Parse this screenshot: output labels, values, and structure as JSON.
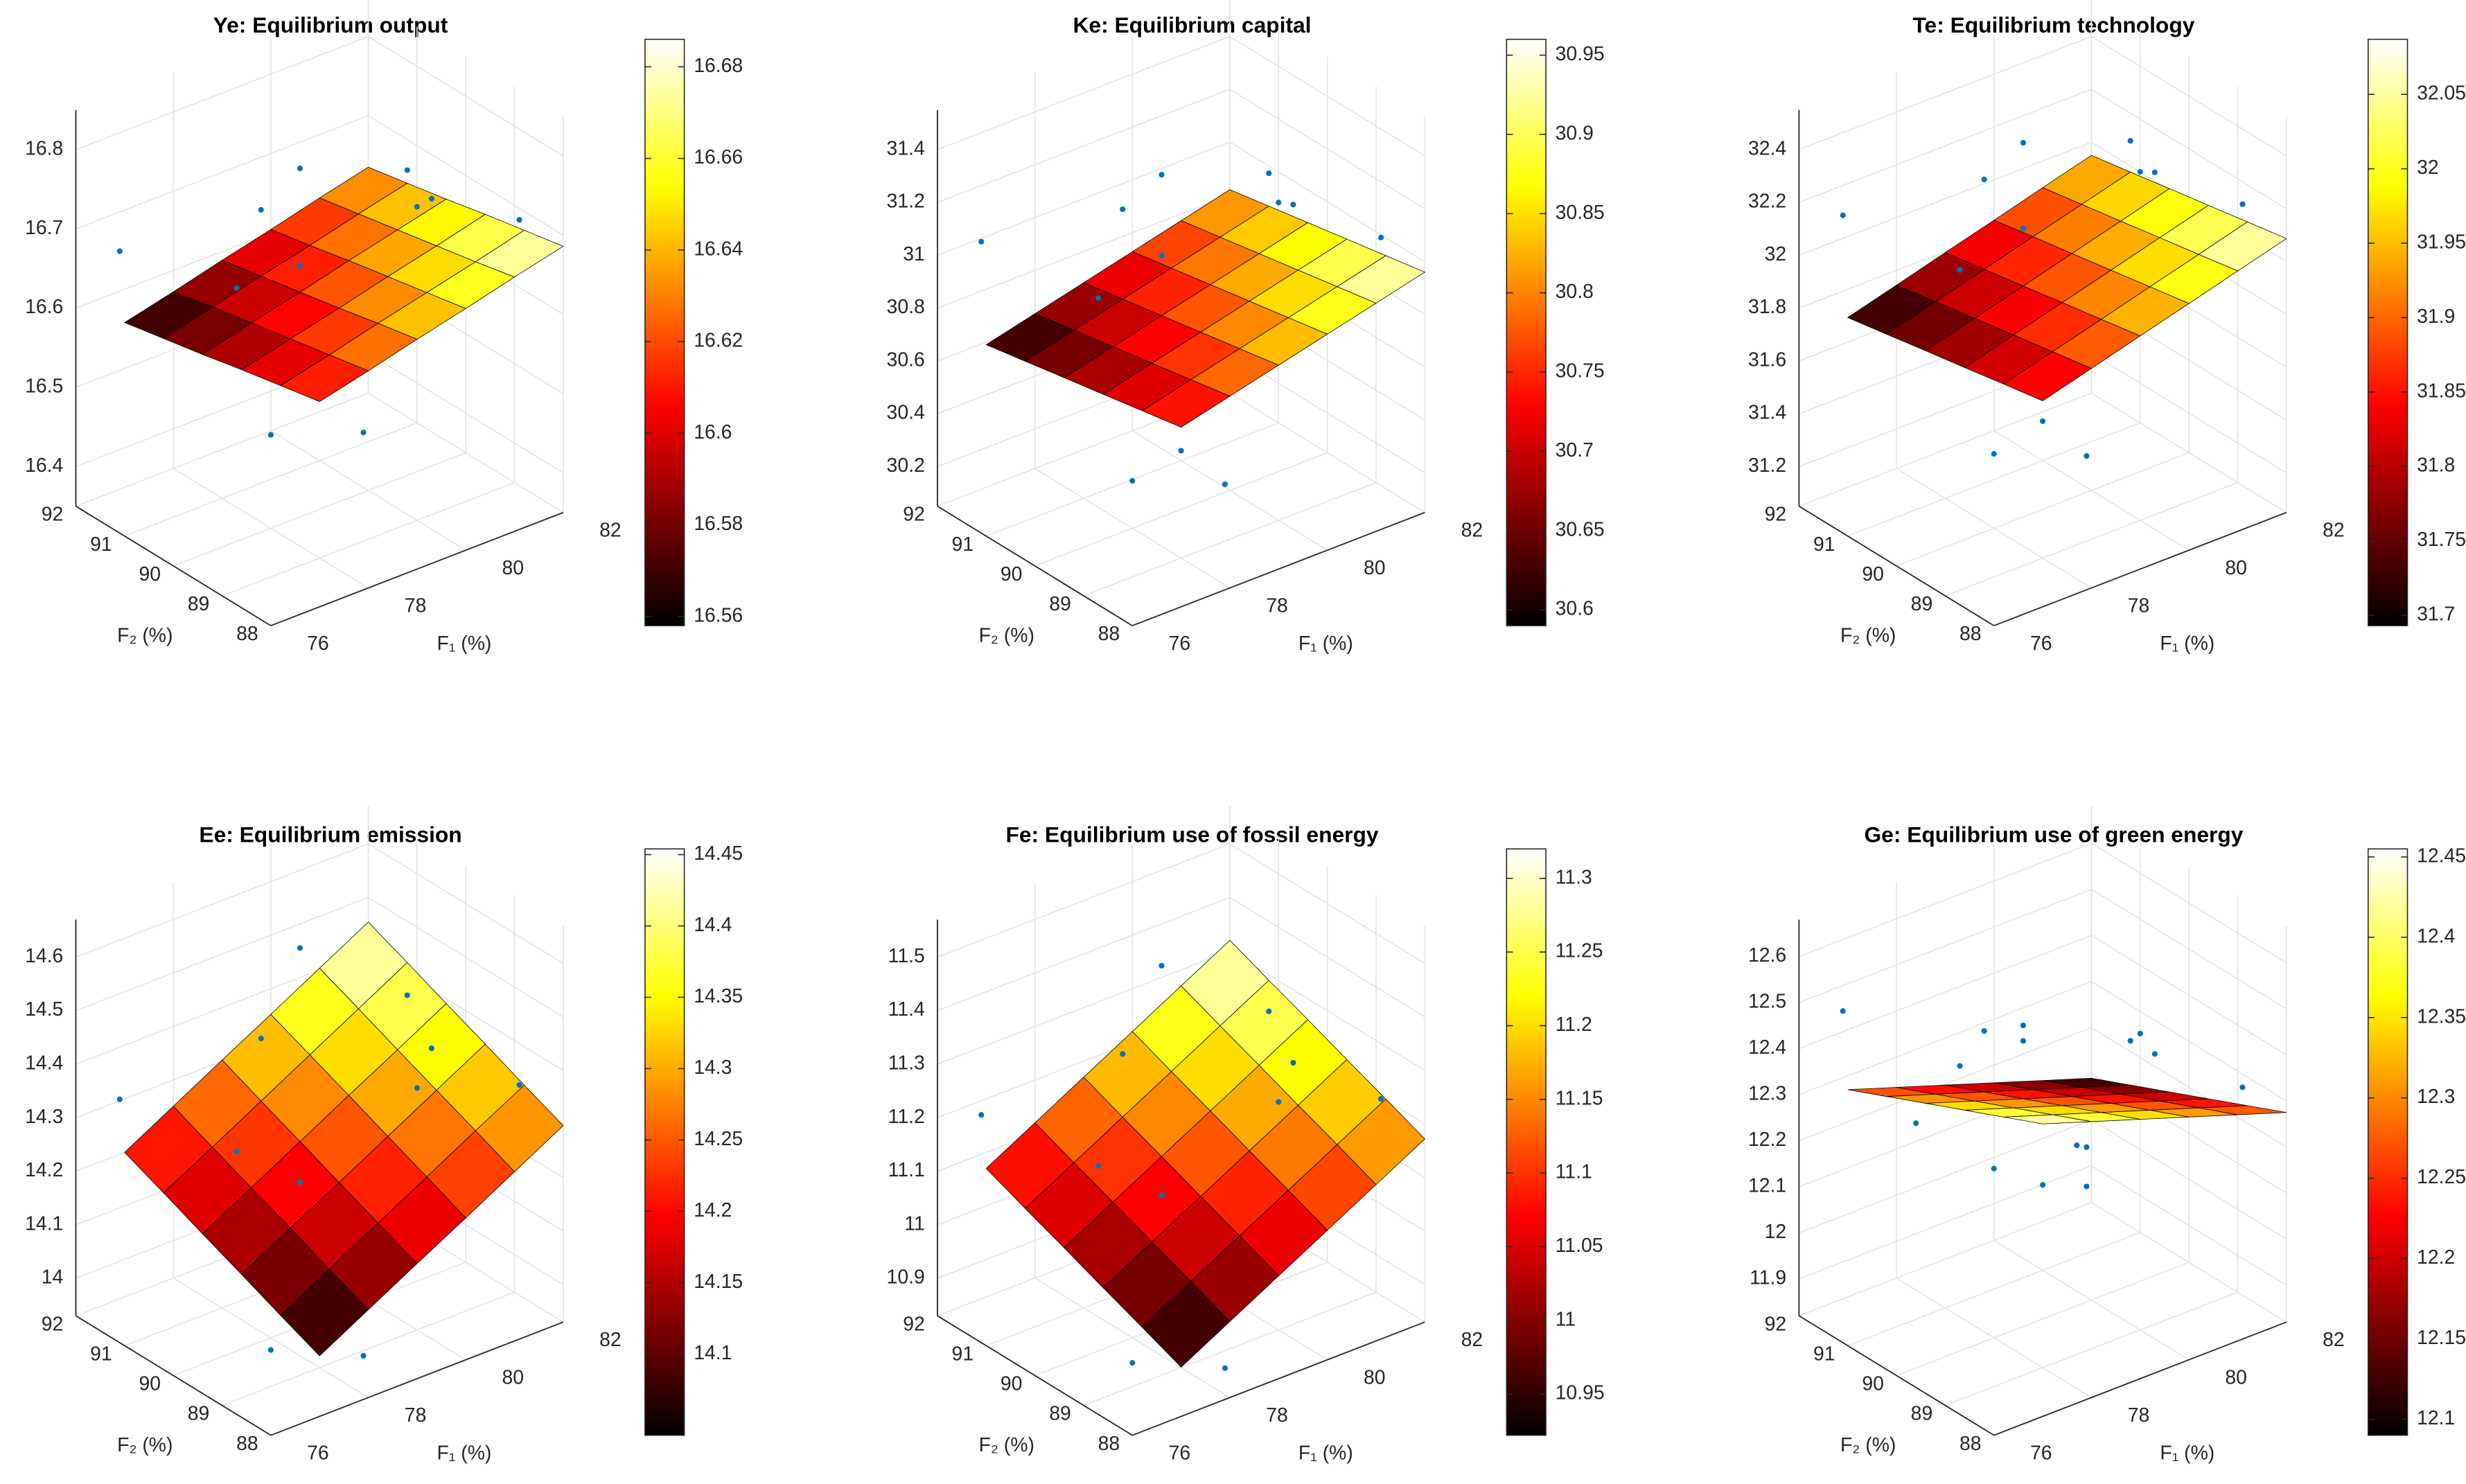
{
  "chart_data": [
    {
      "type": "surface3d",
      "title": "Ye: Equilibrium output",
      "xlabel": "F₁ (%)",
      "ylabel": "F₂ (%)",
      "xlim": [
        76,
        82
      ],
      "ylim": [
        88,
        92
      ],
      "zlim": [
        16.35,
        16.85
      ],
      "xticks": [
        76,
        78,
        80,
        82
      ],
      "yticks": [
        88,
        89,
        90,
        91,
        92
      ],
      "zticks": [
        16.4,
        16.5,
        16.6,
        16.7,
        16.8
      ],
      "grid": true,
      "colormap": "hot",
      "clim": [
        16.558,
        16.686
      ],
      "cticks": [
        16.56,
        16.58,
        16.6,
        16.62,
        16.64,
        16.66,
        16.68
      ],
      "surface": {
        "x": [
          77,
          78,
          79,
          80,
          81,
          82
        ],
        "y": [
          88,
          88.8,
          89.6,
          90.4,
          91.2,
          92
        ],
        "z": [
          [
            16.609,
            16.624,
            16.64,
            16.655,
            16.671,
            16.686
          ],
          [
            16.599,
            16.614,
            16.63,
            16.645,
            16.66,
            16.676
          ],
          [
            16.589,
            16.604,
            16.619,
            16.635,
            16.65,
            16.666
          ],
          [
            16.578,
            16.594,
            16.609,
            16.625,
            16.64,
            16.655
          ],
          [
            16.568,
            16.584,
            16.599,
            16.614,
            16.63,
            16.645
          ],
          [
            16.558,
            16.573,
            16.589,
            16.604,
            16.62,
            16.635
          ]
        ]
      },
      "points": {
        "color": "#0072bd",
        "x": [
          76.5,
          77.2,
          77.8,
          78.3,
          78.9,
          79.4,
          79.9,
          80.3,
          80.8,
          81.3,
          81.7,
          77.5,
          79.0,
          80.5,
          78.2,
          81.0
        ],
        "y": [
          91.6,
          89.2,
          90.5,
          88.4,
          91.1,
          89.7,
          88.9,
          90.8,
          89.5,
          91.4,
          88.6,
          88.9,
          90.0,
          91.9,
          91.8,
          90.2
        ],
        "z": [
          16.675,
          16.517,
          16.639,
          16.524,
          16.689,
          16.564,
          16.752,
          16.584,
          16.718,
          16.542,
          16.704,
          16.735,
          16.494,
          16.673,
          16.529,
          16.723
        ]
      }
    },
    {
      "type": "surface3d",
      "title": "Ke: Equilibrium capital",
      "xlabel": "F₁ (%)",
      "ylabel": "F₂ (%)",
      "xlim": [
        76,
        82
      ],
      "ylim": [
        88,
        92
      ],
      "zlim": [
        30.05,
        31.55
      ],
      "xticks": [
        76,
        78,
        80,
        82
      ],
      "yticks": [
        88,
        89,
        90,
        91,
        92
      ],
      "zticks": [
        30.2,
        30.4,
        30.6,
        30.8,
        31,
        31.2,
        31.4
      ],
      "grid": true,
      "colormap": "hot",
      "clim": [
        30.59,
        30.96
      ],
      "cticks": [
        30.6,
        30.65,
        30.7,
        30.75,
        30.8,
        30.85,
        30.9,
        30.95
      ],
      "surface": {
        "x": [
          77,
          78,
          79,
          80,
          81,
          82
        ],
        "y": [
          88,
          88.8,
          89.6,
          90.4,
          91.2,
          92
        ],
        "z": [
          [
            30.73,
            30.776,
            30.822,
            30.868,
            30.914,
            30.96
          ],
          [
            30.702,
            30.748,
            30.794,
            30.84,
            30.886,
            30.932
          ],
          [
            30.674,
            30.72,
            30.766,
            30.812,
            30.858,
            30.904
          ],
          [
            30.646,
            30.692,
            30.738,
            30.784,
            30.83,
            30.876
          ],
          [
            30.618,
            30.664,
            30.71,
            30.756,
            30.802,
            30.848
          ],
          [
            30.59,
            30.636,
            30.682,
            30.728,
            30.774,
            30.82
          ]
        ]
      },
      "points": {
        "color": "#0072bd",
        "x": [
          76.5,
          77.2,
          77.8,
          78.3,
          78.9,
          79.4,
          79.9,
          80.3,
          80.8,
          81.3,
          81.7,
          77.5,
          79.0,
          80.5,
          78.2,
          81.0
        ],
        "y": [
          91.6,
          89.2,
          90.5,
          88.4,
          91.1,
          89.7,
          88.9,
          90.8,
          89.5,
          91.4,
          88.6,
          88.9,
          90.0,
          91.9,
          91.8,
          90.2
        ],
        "z": [
          31.061,
          30.377,
          30.879,
          30.376,
          31.069,
          30.541,
          31.272,
          30.624,
          31.132,
          30.449,
          31.045,
          31.242,
          30.272,
          30.995,
          30.452,
          31.157
        ]
      }
    },
    {
      "type": "surface3d",
      "title": "Te: Equilibrium technology",
      "xlabel": "F₁ (%)",
      "ylabel": "F₂ (%)",
      "xlim": [
        76,
        82
      ],
      "ylim": [
        88,
        92
      ],
      "zlim": [
        31.05,
        32.55
      ],
      "xticks": [
        76,
        78,
        80,
        82
      ],
      "yticks": [
        88,
        89,
        90,
        91,
        92
      ],
      "zticks": [
        31.2,
        31.4,
        31.6,
        31.8,
        32,
        32.2,
        32.4
      ],
      "grid": true,
      "colormap": "hot",
      "clim": [
        31.693,
        32.087
      ],
      "cticks": [
        31.7,
        31.75,
        31.8,
        31.85,
        31.9,
        31.95,
        32,
        32.05
      ],
      "surface": {
        "x": [
          77,
          78,
          79,
          80,
          81,
          82
        ],
        "y": [
          88,
          88.8,
          89.6,
          90.4,
          91.2,
          92
        ],
        "z": [
          [
            31.83,
            31.881,
            31.933,
            31.984,
            32.036,
            32.087
          ],
          [
            31.803,
            31.854,
            31.905,
            31.957,
            32.008,
            32.06
          ],
          [
            31.775,
            31.827,
            31.878,
            31.929,
            31.981,
            32.032
          ],
          [
            31.748,
            31.799,
            31.85,
            31.902,
            31.953,
            32.005
          ],
          [
            31.72,
            31.772,
            31.823,
            31.875,
            31.926,
            31.977
          ],
          [
            31.693,
            31.744,
            31.796,
            31.847,
            31.899,
            31.95
          ]
        ]
      },
      "points": {
        "color": "#0072bd",
        "x": [
          76.5,
          77.2,
          77.8,
          78.3,
          78.9,
          79.4,
          79.9,
          80.3,
          80.8,
          81.3,
          81.7,
          77.5,
          79.0,
          80.5,
          78.2,
          81.0
        ],
        "y": [
          91.6,
          89.2,
          90.5,
          88.4,
          91.1,
          89.7,
          88.9,
          90.8,
          89.5,
          91.4,
          88.6,
          88.9,
          90.0,
          91.9,
          91.8,
          90.2
        ],
        "z": [
          32.161,
          31.479,
          31.986,
          31.483,
          32.182,
          31.655,
          32.388,
          31.744,
          32.254,
          31.575,
          32.171,
          32.345,
          31.384,
          32.116,
          31.562,
          32.28
        ]
      }
    },
    {
      "type": "surface3d",
      "title": "Ee: Equilibrium emission",
      "xlabel": "F₁ (%)",
      "ylabel": "F₂ (%)",
      "xlim": [
        76,
        82
      ],
      "ylim": [
        88,
        92
      ],
      "zlim": [
        13.93,
        14.67
      ],
      "xticks": [
        76,
        78,
        80,
        82
      ],
      "yticks": [
        88,
        89,
        90,
        91,
        92
      ],
      "zticks": [
        14,
        14.1,
        14.2,
        14.3,
        14.4,
        14.5,
        14.6
      ],
      "grid": true,
      "colormap": "hot",
      "clim": [
        14.043,
        14.454
      ],
      "cticks": [
        14.1,
        14.15,
        14.2,
        14.25,
        14.3,
        14.35,
        14.4,
        14.45
      ],
      "surface": {
        "x": [
          77,
          78,
          79,
          80,
          81,
          82
        ],
        "y": [
          88,
          88.8,
          89.6,
          90.4,
          91.2,
          92
        ],
        "z": [
          [
            14.043,
            14.094,
            14.145,
            14.195,
            14.246,
            14.297
          ],
          [
            14.074,
            14.125,
            14.176,
            14.227,
            14.278,
            14.328
          ],
          [
            14.106,
            14.157,
            14.207,
            14.258,
            14.309,
            14.36
          ],
          [
            14.137,
            14.188,
            14.239,
            14.29,
            14.34,
            14.391
          ],
          [
            14.169,
            14.219,
            14.27,
            14.321,
            14.372,
            14.423
          ],
          [
            14.2,
            14.251,
            14.302,
            14.352,
            14.403,
            14.454
          ]
        ]
      },
      "points": {
        "color": "#0072bd",
        "x": [
          76.5,
          77.2,
          77.8,
          78.3,
          78.9,
          79.4,
          79.9,
          80.3,
          80.8,
          81.3,
          81.7,
          77.5,
          79.0,
          80.5,
          78.2,
          81.0
        ],
        "y": [
          91.6,
          89.2,
          90.5,
          88.4,
          91.1,
          89.7,
          88.9,
          90.8,
          89.5,
          91.4,
          88.6,
          88.9,
          90.0,
          91.9,
          91.8,
          90.2
        ],
        "z": [
          14.339,
          13.98,
          14.257,
          13.975,
          14.396,
          14.142,
          14.391,
          14.261,
          14.4,
          14.26,
          14.35,
          14.299,
          14.043,
          14.464,
          14.178,
          14.453
        ]
      }
    },
    {
      "type": "surface3d",
      "title": "Fe: Equilibrium use of fossil energy",
      "xlabel": "F₁ (%)",
      "ylabel": "F₂ (%)",
      "xlim": [
        76,
        82
      ],
      "ylim": [
        88,
        92
      ],
      "zlim": [
        10.83,
        11.57
      ],
      "xticks": [
        76,
        78,
        80,
        82
      ],
      "yticks": [
        88,
        89,
        90,
        91,
        92
      ],
      "zticks": [
        10.9,
        11,
        11.1,
        11.2,
        11.3,
        11.4,
        11.5
      ],
      "grid": true,
      "colormap": "hot",
      "clim": [
        10.922,
        11.32
      ],
      "cticks": [
        10.95,
        11,
        11.05,
        11.1,
        11.15,
        11.2,
        11.25,
        11.3
      ],
      "surface": {
        "x": [
          77,
          78,
          79,
          80,
          81,
          82
        ],
        "y": [
          88,
          88.8,
          89.6,
          90.4,
          91.2,
          92
        ],
        "z": [
          [
            10.922,
            10.972,
            11.022,
            11.072,
            11.122,
            11.172
          ],
          [
            10.952,
            11.002,
            11.052,
            11.102,
            11.152,
            11.202
          ],
          [
            10.981,
            11.031,
            11.081,
            11.131,
            11.181,
            11.231
          ],
          [
            11.011,
            11.061,
            11.111,
            11.161,
            11.211,
            11.261
          ],
          [
            11.04,
            11.09,
            11.14,
            11.19,
            11.24,
            11.29
          ],
          [
            11.07,
            11.12,
            11.17,
            11.22,
            11.27,
            11.32
          ]
        ]
      },
      "points": {
        "color": "#0072bd",
        "x": [
          76.5,
          77.2,
          77.8,
          78.3,
          78.9,
          79.4,
          79.9,
          80.3,
          80.8,
          81.3,
          81.7,
          77.5,
          79.0,
          80.5,
          78.2,
          81.0
        ],
        "y": [
          91.6,
          89.2,
          90.5,
          88.4,
          91.1,
          89.7,
          88.9,
          90.8,
          89.5,
          91.4,
          88.6,
          88.9,
          90.0,
          91.9,
          91.8,
          90.2
        ],
        "z": [
          11.21,
          10.856,
          11.13,
          10.852,
          11.267,
          11.015,
          11.265,
          11.131,
          11.273,
          11.128,
          11.224,
          11.175,
          10.916,
          11.331,
          11.048,
          11.323
        ]
      }
    },
    {
      "type": "surface3d",
      "title": "Ge: Equilibrium use of green energy",
      "xlabel": "F₁ (%)",
      "ylabel": "F₂ (%)",
      "xlim": [
        76,
        82
      ],
      "ylim": [
        88,
        92
      ],
      "zlim": [
        11.82,
        12.68
      ],
      "xticks": [
        76,
        78,
        80,
        82
      ],
      "yticks": [
        88,
        89,
        90,
        91,
        92
      ],
      "zticks": [
        11.9,
        12,
        12.1,
        12.2,
        12.3,
        12.4,
        12.5,
        12.6
      ],
      "grid": true,
      "colormap": "hot",
      "clim": [
        12.09,
        12.455
      ],
      "cticks": [
        12.1,
        12.15,
        12.2,
        12.25,
        12.3,
        12.35,
        12.4,
        12.45
      ],
      "surface": {
        "x": [
          77,
          78,
          79,
          80,
          81,
          82
        ],
        "y": [
          88,
          88.8,
          89.6,
          90.4,
          91.2,
          92
        ],
        "z": [
          [
            12.455,
            12.419,
            12.383,
            12.347,
            12.311,
            12.275
          ],
          [
            12.418,
            12.382,
            12.346,
            12.31,
            12.274,
            12.238
          ],
          [
            12.381,
            12.345,
            12.309,
            12.273,
            12.237,
            12.201
          ],
          [
            12.344,
            12.308,
            12.272,
            12.236,
            12.2,
            12.164
          ],
          [
            12.307,
            12.271,
            12.235,
            12.199,
            12.163,
            12.127
          ],
          [
            12.27,
            12.234,
            12.198,
            12.162,
            12.126,
            12.09
          ]
        ]
      },
      "points": {
        "color": "#0072bd",
        "x": [
          76.5,
          77.2,
          77.8,
          78.3,
          78.9,
          79.4,
          79.9,
          80.3,
          80.8,
          81.3,
          81.7,
          77.5,
          79.0,
          80.5,
          78.2,
          81.0
        ],
        "y": [
          91.6,
          89.2,
          90.5,
          88.4,
          91.1,
          89.7,
          88.9,
          90.8,
          89.5,
          91.4,
          88.6,
          88.9,
          90.0,
          91.9,
          91.8,
          90.2
        ],
        "z": [
          12.487,
          12.272,
          12.386,
          12.24,
          12.378,
          12.2,
          12.474,
          12.147,
          12.354,
          12.008,
          12.303,
          12.59,
          12.111,
          12.239,
          12.161,
          12.329
        ]
      }
    }
  ]
}
